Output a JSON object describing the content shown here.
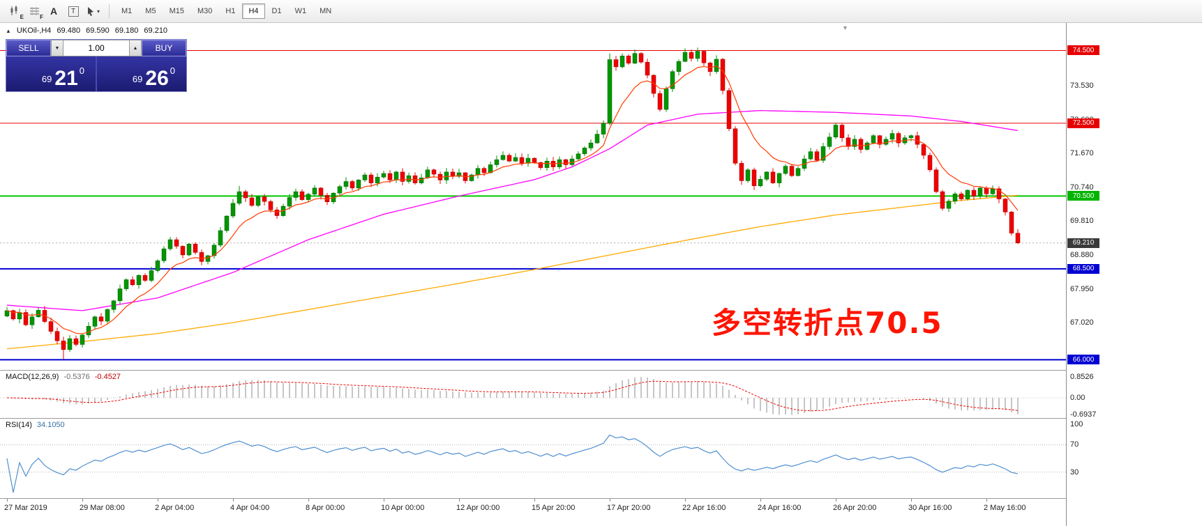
{
  "toolbar": {
    "tools": [
      {
        "id": "candlesticks-tool",
        "sub": "E"
      },
      {
        "id": "grid-tool",
        "sub": "F"
      },
      {
        "id": "text-tool",
        "label": "A"
      },
      {
        "id": "frame-tool",
        "label": "T"
      },
      {
        "id": "cursor-tool",
        "caret": "▾"
      }
    ],
    "timeframes": [
      {
        "label": "M1",
        "active": false
      },
      {
        "label": "M5",
        "active": false
      },
      {
        "label": "M15",
        "active": false
      },
      {
        "label": "M30",
        "active": false
      },
      {
        "label": "H1",
        "active": false
      },
      {
        "label": "H4",
        "active": true
      },
      {
        "label": "D1",
        "active": false
      },
      {
        "label": "W1",
        "active": false
      },
      {
        "label": "MN",
        "active": false
      }
    ]
  },
  "symbol_header": {
    "collapse_arrow": "▲",
    "title": "UKOil-,H4",
    "open": "69.480",
    "high": "69.590",
    "low": "69.180",
    "close": "69.210"
  },
  "trade_panel": {
    "sell_label": "SELL",
    "buy_label": "BUY",
    "volume": "1.00",
    "spinner_down": "▼",
    "spinner_up": "▲",
    "sell_price": {
      "prefix": "69",
      "big": "21",
      "sup": "0"
    },
    "buy_price": {
      "prefix": "69",
      "big": "26",
      "sup": "0"
    }
  },
  "annotation": {
    "text": "多空转折点70.5",
    "color": "#ff1400"
  },
  "indicators": {
    "macd": {
      "name": "MACD(12,26,9)",
      "value_main": "-0.5376",
      "value_signal": "-0.4527",
      "axis_labels": [
        {
          "label": "0.8526",
          "value": 0.8526
        },
        {
          "label": "0.00",
          "value": 0
        },
        {
          "label": "-0.6937",
          "value": -0.6937
        }
      ]
    },
    "rsi": {
      "name": "RSI(14)",
      "value": "34.1050",
      "axis_labels": [
        {
          "label": "100",
          "value": 100
        },
        {
          "label": "70",
          "value": 70
        },
        {
          "label": "30",
          "value": 30
        }
      ]
    }
  },
  "price_axis": {
    "ticks": [
      {
        "label": "73.530",
        "price": 73.53
      },
      {
        "label": "72.600",
        "price": 72.6
      },
      {
        "label": "71.670",
        "price": 71.67
      },
      {
        "label": "70.740",
        "price": 70.74
      },
      {
        "label": "69.810",
        "price": 69.81
      },
      {
        "label": "68.880",
        "price": 68.88
      },
      {
        "label": "67.950",
        "price": 67.95
      },
      {
        "label": "67.020",
        "price": 67.02
      }
    ],
    "tags": [
      {
        "label": "74.500",
        "price": 74.5,
        "color": "#e60000"
      },
      {
        "label": "72.500",
        "price": 72.5,
        "color": "#e60000"
      },
      {
        "label": "70.500",
        "price": 70.5,
        "color": "#00b400"
      },
      {
        "label": "69.210",
        "price": 69.21,
        "color": "#3a3a3a"
      },
      {
        "label": "68.500",
        "price": 68.5,
        "color": "#0000d2"
      },
      {
        "label": "66.000",
        "price": 66.0,
        "color": "#0000d2"
      }
    ]
  },
  "chart_data": {
    "type": "candlestick",
    "symbol": "UKOil-,H4",
    "ohlc_last": {
      "open": 69.48,
      "high": 69.59,
      "low": 69.18,
      "close": 69.21
    },
    "price_range_top": 75.256,
    "price_range_bottom": 65.72,
    "first_open": 67.2,
    "closes": [
      67.35,
      67.12,
      67.3,
      66.96,
      67.18,
      67.36,
      67.05,
      66.78,
      66.52,
      66.28,
      66.58,
      66.42,
      66.68,
      66.92,
      67.18,
      67.06,
      67.38,
      67.62,
      67.95,
      68.2,
      68.06,
      68.32,
      68.18,
      68.45,
      68.72,
      69.05,
      69.3,
      69.12,
      68.88,
      69.18,
      68.95,
      68.7,
      68.86,
      69.15,
      69.55,
      69.95,
      70.3,
      70.62,
      70.45,
      70.24,
      70.48,
      70.35,
      70.12,
      69.96,
      70.22,
      70.46,
      70.62,
      70.4,
      70.55,
      70.72,
      70.52,
      70.34,
      70.58,
      70.76,
      70.9,
      70.72,
      70.94,
      71.08,
      70.86,
      71.02,
      71.12,
      70.94,
      71.16,
      70.9,
      71.06,
      70.86,
      71.0,
      71.22,
      71.1,
      70.94,
      71.16,
      71.04,
      71.14,
      70.92,
      71.08,
      71.26,
      71.14,
      71.36,
      71.5,
      71.62,
      71.46,
      71.56,
      71.4,
      71.54,
      71.42,
      71.28,
      71.46,
      71.3,
      71.5,
      71.36,
      71.52,
      71.66,
      71.82,
      71.96,
      72.2,
      72.5,
      74.25,
      74.05,
      74.35,
      74.15,
      74.42,
      74.18,
      73.82,
      73.32,
      72.88,
      73.45,
      73.92,
      74.2,
      74.45,
      74.28,
      74.48,
      74.16,
      73.92,
      74.26,
      73.4,
      72.35,
      71.4,
      70.92,
      71.22,
      70.78,
      70.96,
      71.16,
      70.86,
      71.12,
      71.32,
      71.06,
      71.26,
      71.52,
      71.72,
      71.48,
      71.86,
      72.12,
      72.45,
      72.1,
      71.86,
      72.06,
      71.78,
      71.96,
      72.16,
      71.92,
      72.06,
      72.22,
      71.96,
      72.1,
      72.16,
      71.92,
      71.62,
      71.22,
      70.62,
      70.16,
      70.36,
      70.56,
      70.42,
      70.66,
      70.5,
      70.72,
      70.56,
      70.7,
      70.42,
      70.06,
      69.48,
      69.21
    ],
    "wick_overrides": {
      "9": {
        "low": 66.02
      },
      "37": {
        "high": 70.78
      },
      "96": {
        "high": 74.42
      },
      "108": {
        "high": 74.56
      },
      "110": {
        "high": 74.58
      },
      "161": {
        "high": 69.59,
        "low": 69.18
      }
    },
    "up_color": "#009600",
    "down_color": "#f00000",
    "hlines": [
      {
        "price": 74.5,
        "color": "#e60000",
        "width": 1
      },
      {
        "price": 72.5,
        "color": "#e60000",
        "width": 1
      },
      {
        "price": 70.5,
        "color": "#00c800",
        "width": 2
      },
      {
        "price": 68.5,
        "color": "#0000d2",
        "width": 2
      },
      {
        "price": 66.0,
        "color": "#0000d2",
        "width": 2
      }
    ],
    "current_price": 69.21,
    "ma_fast": {
      "type": "ema",
      "period": 9,
      "color": "#ff3c00"
    },
    "ma_mid": {
      "color": "#ff00ff",
      "anchors": [
        [
          0,
          67.5
        ],
        [
          12,
          67.35
        ],
        [
          24,
          67.7
        ],
        [
          36,
          68.4
        ],
        [
          48,
          69.3
        ],
        [
          60,
          70.0
        ],
        [
          72,
          70.5
        ],
        [
          84,
          70.95
        ],
        [
          90,
          71.3
        ],
        [
          96,
          71.8
        ],
        [
          102,
          72.45
        ],
        [
          110,
          72.75
        ],
        [
          120,
          72.85
        ],
        [
          132,
          72.8
        ],
        [
          144,
          72.7
        ],
        [
          152,
          72.55
        ],
        [
          161,
          72.3
        ]
      ]
    },
    "ma_slow": {
      "color": "#ffaa00",
      "anchors": [
        [
          0,
          66.3
        ],
        [
          12,
          66.5
        ],
        [
          24,
          66.72
        ],
        [
          36,
          67.02
        ],
        [
          48,
          67.38
        ],
        [
          60,
          67.74
        ],
        [
          72,
          68.1
        ],
        [
          84,
          68.48
        ],
        [
          96,
          68.88
        ],
        [
          108,
          69.28
        ],
        [
          120,
          69.66
        ],
        [
          132,
          69.98
        ],
        [
          144,
          70.22
        ],
        [
          152,
          70.38
        ],
        [
          161,
          70.52
        ]
      ]
    },
    "macd": {
      "fast": 12,
      "slow": 26,
      "signal": 9,
      "axis_max": 0.8526,
      "axis_min": -0.6937,
      "histogram_color": "#8c8c8c",
      "signal_color": "#f00000"
    },
    "rsi": {
      "period": 14,
      "levels": [
        70,
        30
      ],
      "color": "#4f8fd0"
    },
    "time_labels": [
      {
        "text": "27 Mar 2019",
        "index": 0
      },
      {
        "text": "29 Mar 08:00",
        "index": 12
      },
      {
        "text": "2 Apr 04:00",
        "index": 24
      },
      {
        "text": "4 Apr 04:00",
        "index": 36
      },
      {
        "text": "8 Apr 00:00",
        "index": 48
      },
      {
        "text": "10 Apr 00:00",
        "index": 60
      },
      {
        "text": "12 Apr 00:00",
        "index": 72
      },
      {
        "text": "15 Apr 20:00",
        "index": 84
      },
      {
        "text": "17 Apr 20:00",
        "index": 96
      },
      {
        "text": "22 Apr 16:00",
        "index": 108
      },
      {
        "text": "24 Apr 16:00",
        "index": 120
      },
      {
        "text": "26 Apr 20:00",
        "index": 132
      },
      {
        "text": "30 Apr 16:00",
        "index": 144
      },
      {
        "text": "2 May 16:00",
        "index": 156
      }
    ]
  }
}
